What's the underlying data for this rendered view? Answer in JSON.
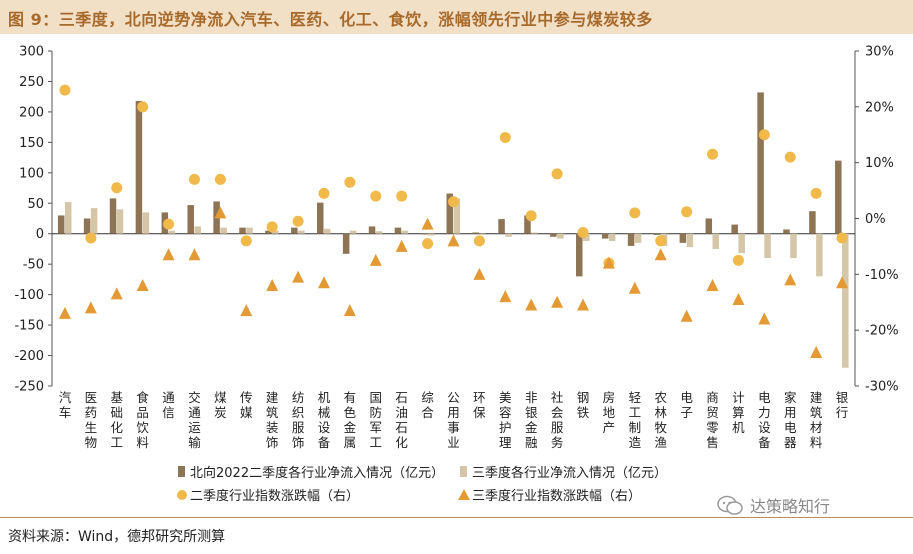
{
  "figure": {
    "title": "图 9：三季度，北向逆势净流入汽车、医药、化工、食饮，涨幅领先行业中参与煤炭较多",
    "source": "资料来源：Wind，德邦研究所测算",
    "watermark": "达策略知行"
  },
  "chart_data": {
    "type": "bar",
    "categories": [
      "汽车",
      "医药生物",
      "基础化工",
      "食品饮料",
      "通信",
      "交通运输",
      "煤炭",
      "传媒",
      "建筑装饰",
      "纺织服饰",
      "机械设备",
      "有色金属",
      "国防军工",
      "石油石化",
      "综合",
      "公用事业",
      "环保",
      "美容护理",
      "非银金融",
      "社会服务",
      "钢铁",
      "房地产",
      "轻工制造",
      "农林牧渔",
      "电子",
      "商贸零售",
      "计算机",
      "电力设备",
      "家用电器",
      "建筑材料",
      "银行"
    ],
    "series": [
      {
        "name": "北向2022二季度各行业净流入情况（亿元）",
        "kind": "bar",
        "axis": "left",
        "color": "#8c7455",
        "values": [
          30,
          25,
          58,
          218,
          35,
          47,
          53,
          10,
          5,
          10,
          51,
          -33,
          12,
          10,
          -1,
          66,
          2,
          24,
          30,
          -5,
          -70,
          -8,
          -20,
          -2,
          -15,
          25,
          15,
          232,
          7,
          37,
          120
        ]
      },
      {
        "name": "三季度各行业净流入情况（亿元）",
        "kind": "bar",
        "axis": "left",
        "color": "#d4c6a7",
        "values": [
          52,
          42,
          40,
          35,
          5,
          12,
          10,
          10,
          5,
          5,
          8,
          5,
          4,
          5,
          -3,
          58,
          -2,
          -5,
          2,
          -8,
          -12,
          -12,
          -15,
          -20,
          -22,
          -25,
          -32,
          -40,
          -40,
          -70,
          -220
        ]
      },
      {
        "name": "二季度行业指数涨跌幅（右）",
        "kind": "point",
        "marker": "circle",
        "axis": "right",
        "color": "#f0b94a",
        "values": [
          23,
          -3.5,
          5.5,
          20,
          -1,
          7,
          7,
          -4,
          -1.5,
          -0.5,
          4.5,
          6.5,
          4,
          4,
          -4.5,
          3,
          -4,
          14.5,
          0.5,
          8,
          -2.5,
          -8,
          1,
          -4,
          1.2,
          11.5,
          -7.5,
          15,
          11,
          4.5,
          -3.5
        ]
      },
      {
        "name": "三季度行业指数涨跌幅（右）",
        "kind": "point",
        "marker": "triangle",
        "axis": "right",
        "color": "#e39a34",
        "values": [
          -17,
          -16,
          -13.5,
          -12,
          -6.5,
          -6.5,
          1,
          -16.5,
          -12,
          -10.5,
          -11.5,
          -16.5,
          -7.5,
          -5,
          -1,
          -4,
          -10,
          -14,
          -15.5,
          -15,
          -15.5,
          -8,
          -12.5,
          -6.5,
          -17.5,
          -12,
          -14.5,
          -18,
          -11,
          -24,
          -11.5
        ]
      }
    ],
    "y_left": {
      "min": -250,
      "max": 300,
      "step": 50,
      "ticks": [
        "300",
        "250",
        "200",
        "150",
        "100",
        "50",
        "0",
        "-50",
        "-100",
        "-150",
        "-200",
        "-250"
      ]
    },
    "y_right": {
      "min": -30,
      "max": 30,
      "step": 10,
      "ticks": [
        "30%",
        "20%",
        "10%",
        "0%",
        "-10%",
        "-20%",
        "-30%"
      ]
    },
    "grid": false,
    "legend_position": "bottom"
  }
}
